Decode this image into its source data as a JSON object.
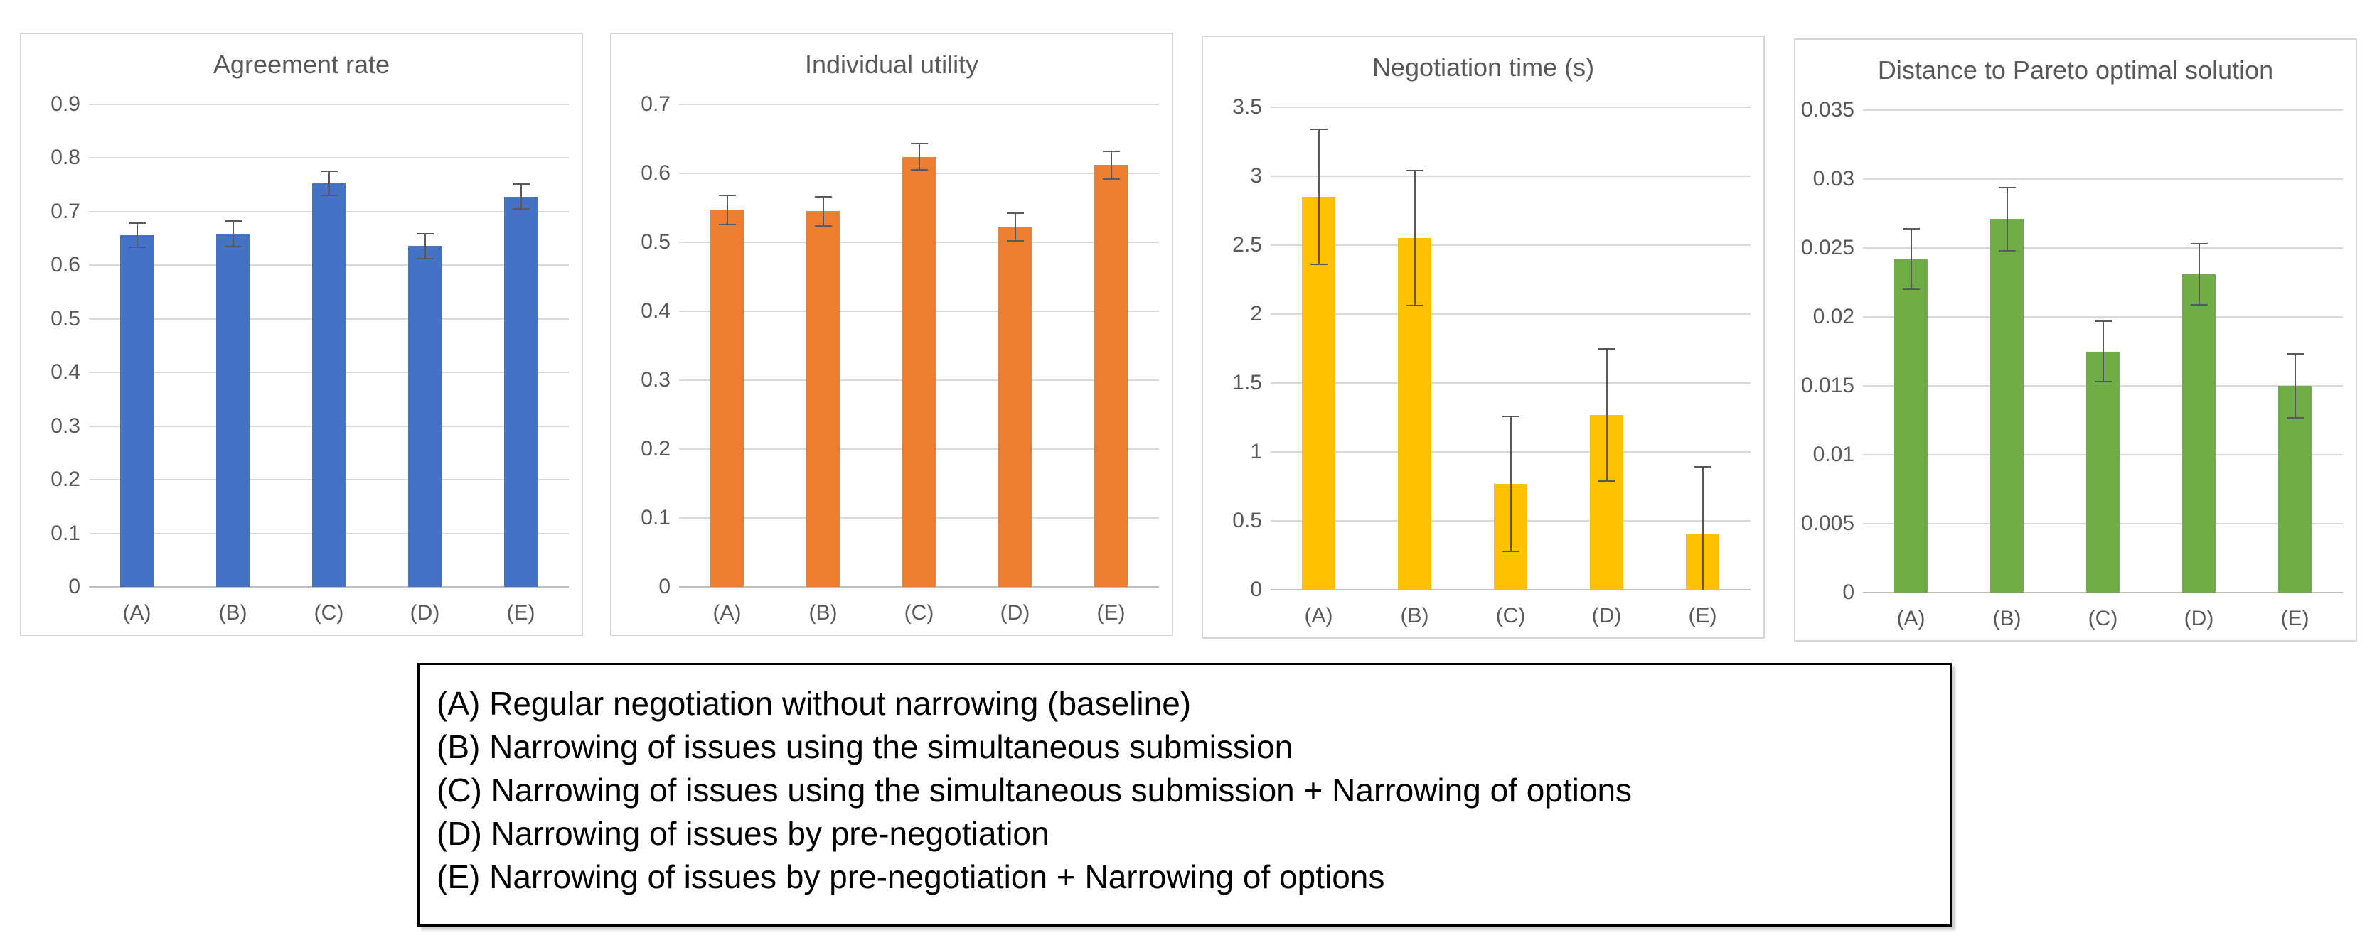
{
  "figure": {
    "description_lines_count": 5
  },
  "chart_data": [
    {
      "type": "bar",
      "title": "Agreement rate",
      "categories": [
        "(A)",
        "(B)",
        "(C)",
        "(D)",
        "(E)"
      ],
      "values": [
        0.656,
        0.659,
        0.753,
        0.636,
        0.728
      ],
      "errors": [
        0.023,
        0.024,
        0.022,
        0.023,
        0.023
      ],
      "bar_color": "#4472C4",
      "ylim": [
        0,
        0.9
      ],
      "ytick_labels": [
        "0.9",
        "0.8",
        "0.7",
        "0.6",
        "0.5",
        "0.4",
        "0.3",
        "0.2",
        "0.1",
        "0"
      ],
      "xlabel": "",
      "ylabel": "",
      "grid": true,
      "legend_position": "none"
    },
    {
      "type": "bar",
      "title": "Individual utility",
      "categories": [
        "(A)",
        "(B)",
        "(C)",
        "(D)",
        "(E)"
      ],
      "values": [
        0.547,
        0.545,
        0.624,
        0.522,
        0.612
      ],
      "errors": [
        0.021,
        0.021,
        0.019,
        0.02,
        0.02
      ],
      "bar_color": "#ED7D31",
      "ylim": [
        0,
        0.7
      ],
      "ytick_labels": [
        "0.7",
        "0.6",
        "0.5",
        "0.4",
        "0.3",
        "0.2",
        "0.1",
        "0"
      ],
      "xlabel": "",
      "ylabel": "",
      "grid": true,
      "legend_position": "none"
    },
    {
      "type": "bar",
      "title": "Negotiation time (s)",
      "categories": [
        "(A)",
        "(B)",
        "(C)",
        "(D)",
        "(E)"
      ],
      "values": [
        2.85,
        2.55,
        0.77,
        1.27,
        0.4
      ],
      "errors": [
        0.49,
        0.49,
        0.49,
        0.48,
        0.49
      ],
      "bar_color": "#FFC000",
      "ylim": [
        0,
        3.5
      ],
      "ytick_labels": [
        "3.5",
        "3",
        "2.5",
        "2",
        "1.5",
        "1",
        "0.5",
        "0"
      ],
      "xlabel": "",
      "ylabel": "",
      "grid": true,
      "legend_position": "none"
    },
    {
      "type": "bar",
      "title": "Distance to Pareto optimal solution",
      "categories": [
        "(A)",
        "(B)",
        "(C)",
        "(D)",
        "(E)"
      ],
      "values": [
        0.0242,
        0.0271,
        0.0175,
        0.0231,
        0.015
      ],
      "errors": [
        0.0022,
        0.0023,
        0.0022,
        0.0022,
        0.0023
      ],
      "bar_color": "#70AD47",
      "ylim": [
        0,
        0.035
      ],
      "ytick_labels": [
        "0.035",
        "0.03",
        "0.025",
        "0.02",
        "0.015",
        "0.01",
        "0.005",
        "0"
      ],
      "xlabel": "",
      "ylabel": "",
      "grid": true,
      "legend_position": "none"
    }
  ],
  "legend": {
    "lines": [
      "(A) Regular negotiation without narrowing (baseline)",
      "(B) Narrowing of issues using the simultaneous submission",
      "(C) Narrowing of issues using the simultaneous submission + Narrowing of options",
      "(D) Narrowing of issues by pre-negotiation",
      "(E) Narrowing of issues by pre-negotiation + Narrowing of options"
    ]
  },
  "style": {
    "grid_color": "#D9D9D9",
    "axis_color": "#BFBFBF",
    "tick_text_color": "#595959",
    "title_text_color": "#595959",
    "error_bar_color": "#595959",
    "legend_border_color": "#000000"
  }
}
